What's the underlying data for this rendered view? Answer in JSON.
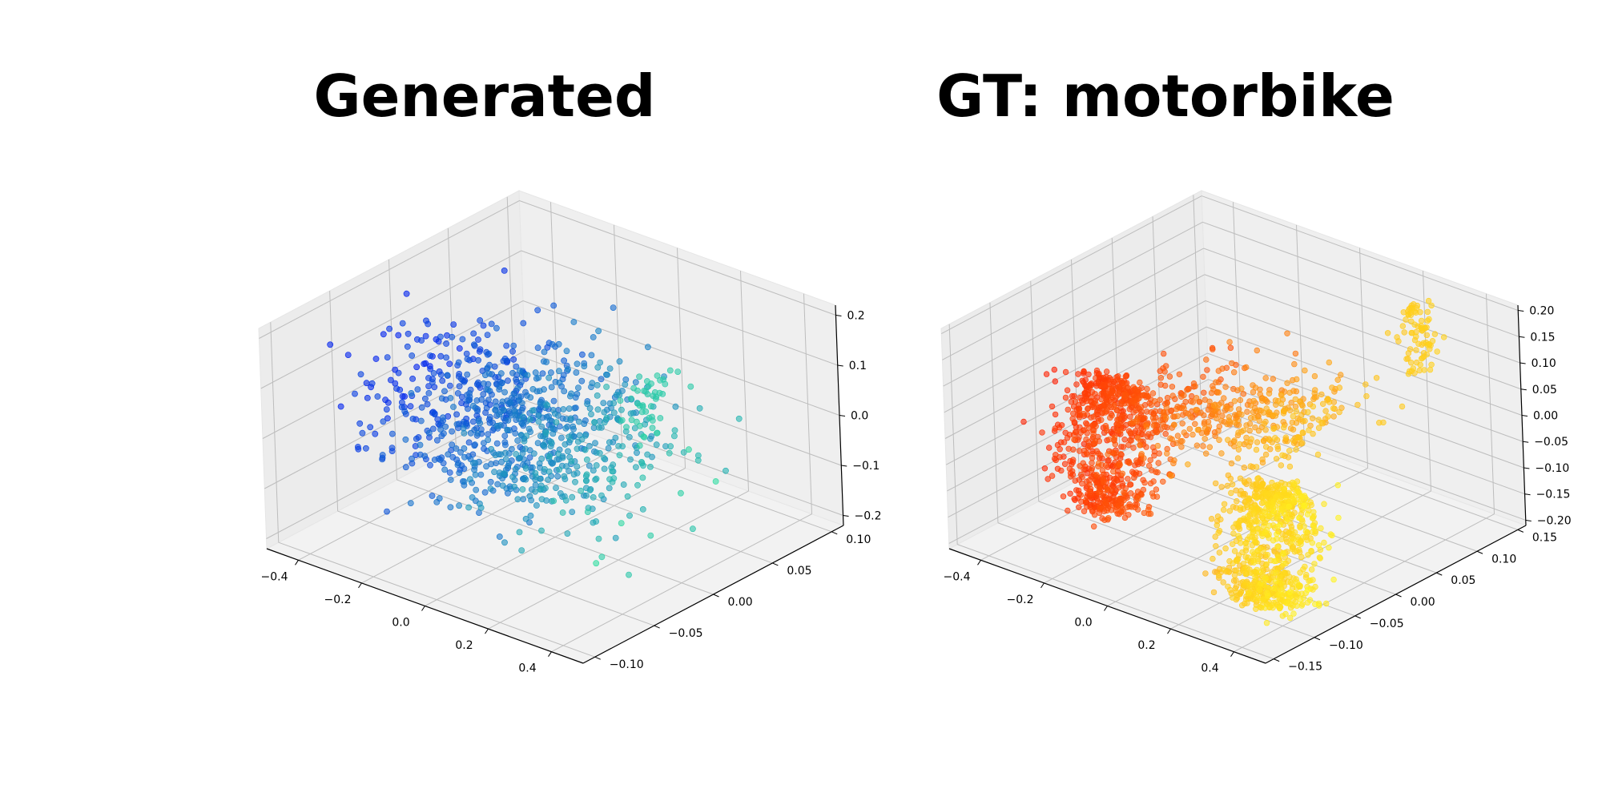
{
  "chart_data": [
    {
      "type": "scatter",
      "subtype": "3d",
      "title": "Generated",
      "colormap": "winter",
      "colors": {
        "start": "#0022ee",
        "end": "#33ee99"
      },
      "point_count": 900,
      "grid": true,
      "xlim": [
        -0.5,
        0.5
      ],
      "ylim": [
        -0.11,
        0.11
      ],
      "zlim": [
        -0.22,
        0.22
      ],
      "xticks": [
        {
          "value": -0.4,
          "label": "−0.4"
        },
        {
          "value": -0.2,
          "label": "−0.2"
        },
        {
          "value": 0.0,
          "label": "0.0"
        },
        {
          "value": 0.2,
          "label": "0.2"
        },
        {
          "value": 0.4,
          "label": "0.4"
        }
      ],
      "yticks": [
        {
          "value": -0.1,
          "label": "−0.10"
        },
        {
          "value": -0.05,
          "label": "−0.05"
        },
        {
          "value": 0.0,
          "label": "0.00"
        },
        {
          "value": 0.05,
          "label": "0.05"
        },
        {
          "value": 0.1,
          "label": "0.10"
        }
      ],
      "zticks": [
        {
          "value": -0.2,
          "label": "−0.2"
        },
        {
          "value": -0.1,
          "label": "−0.1"
        },
        {
          "value": 0.0,
          "label": "0.0"
        },
        {
          "value": 0.1,
          "label": "0.1"
        },
        {
          "value": 0.2,
          "label": "0.2"
        }
      ]
    },
    {
      "type": "scatter",
      "subtype": "3d",
      "title": "GT: motorbike",
      "colormap": "autumn",
      "colors": {
        "start": "#ff1a00",
        "end": "#ffff22"
      },
      "point_count": 2048,
      "grid": true,
      "xlim": [
        -0.5,
        0.5
      ],
      "ylim": [
        -0.16,
        0.16
      ],
      "zlim": [
        -0.21,
        0.21
      ],
      "xticks": [
        {
          "value": -0.4,
          "label": "−0.4"
        },
        {
          "value": -0.2,
          "label": "−0.2"
        },
        {
          "value": 0.0,
          "label": "0.0"
        },
        {
          "value": 0.2,
          "label": "0.2"
        },
        {
          "value": 0.4,
          "label": "0.4"
        }
      ],
      "yticks": [
        {
          "value": -0.15,
          "label": "−0.15"
        },
        {
          "value": -0.1,
          "label": "−0.10"
        },
        {
          "value": -0.05,
          "label": "−0.05"
        },
        {
          "value": 0.0,
          "label": "0.00"
        },
        {
          "value": 0.05,
          "label": "0.05"
        },
        {
          "value": 0.1,
          "label": "0.10"
        },
        {
          "value": 0.15,
          "label": "0.15"
        }
      ],
      "zticks": [
        {
          "value": -0.2,
          "label": "−0.20"
        },
        {
          "value": -0.15,
          "label": "−0.15"
        },
        {
          "value": -0.1,
          "label": "−0.10"
        },
        {
          "value": -0.05,
          "label": "−0.05"
        },
        {
          "value": 0.0,
          "label": "0.00"
        },
        {
          "value": 0.05,
          "label": "0.05"
        },
        {
          "value": 0.1,
          "label": "0.10"
        },
        {
          "value": 0.15,
          "label": "0.15"
        },
        {
          "value": 0.2,
          "label": "0.20"
        }
      ]
    }
  ]
}
